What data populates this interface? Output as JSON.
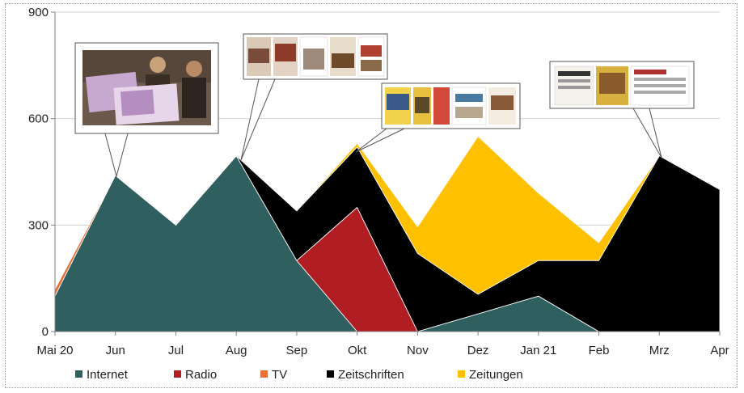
{
  "chart_data": {
    "type": "area",
    "stacked": true,
    "categories": [
      "Mai 20",
      "Jun",
      "Jul",
      "Aug",
      "Sep",
      "Okt",
      "Nov",
      "Dez",
      "Jan 21",
      "Feb",
      "Mrz",
      "Apr"
    ],
    "ylim": [
      0,
      900
    ],
    "yticks": [
      "0",
      "300",
      "600",
      "900"
    ],
    "grid": true,
    "legend_position": "bottom",
    "series": [
      {
        "name": "Internet",
        "color": "#2f5f5f",
        "values": [
          100,
          440,
          300,
          495,
          200,
          0,
          0,
          50,
          100,
          0,
          0,
          0
        ]
      },
      {
        "name": "Radio",
        "color": "#b01e23",
        "values": [
          0,
          0,
          0,
          0,
          0,
          350,
          0,
          0,
          0,
          0,
          0,
          0
        ]
      },
      {
        "name": "TV",
        "color": "#e8703a",
        "values": [
          20,
          0,
          0,
          0,
          0,
          0,
          0,
          0,
          0,
          0,
          0,
          0
        ]
      },
      {
        "name": "Zeitschriften",
        "color": "#000000",
        "values": [
          0,
          0,
          0,
          0,
          140,
          170,
          220,
          55,
          100,
          200,
          495,
          400
        ]
      },
      {
        "name": "Zeitungen",
        "color": "#ffc000",
        "values": [
          0,
          0,
          0,
          0,
          0,
          10,
          75,
          445,
          190,
          50,
          0,
          0
        ]
      }
    ]
  }
}
